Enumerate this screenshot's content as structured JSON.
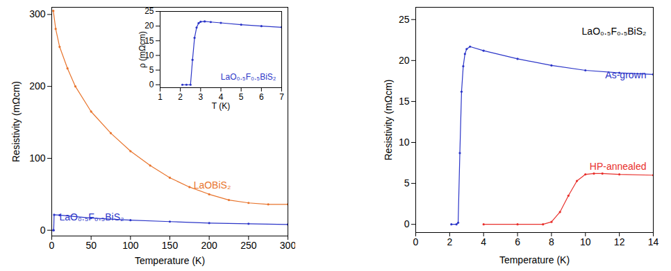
{
  "chart_data": [
    {
      "type": "line",
      "x_label": "Temperature (K)",
      "y_label": "Resistivity (mΩcm)",
      "xlim": [
        0,
        300
      ],
      "ylim": [
        -8,
        310
      ],
      "xticks": [
        0,
        50,
        100,
        150,
        200,
        250,
        300
      ],
      "yticks": [
        0,
        100,
        200,
        300
      ],
      "series": [
        {
          "name": "LaOBiS₂",
          "color": "#e8742c",
          "marker": "circle",
          "line_style": "solid",
          "x": [
            2,
            5,
            10,
            20,
            30,
            50,
            75,
            100,
            125,
            150,
            175,
            200,
            225,
            250,
            275,
            300
          ],
          "values": [
            305,
            280,
            255,
            225,
            200,
            165,
            135,
            110,
            90,
            73,
            60,
            50,
            42,
            38,
            36,
            36
          ]
        },
        {
          "name": "LaO₀.₅F₀.₅BiS₂",
          "color": "#2b35c8",
          "marker": "circle",
          "line_style": "solid",
          "x": [
            2,
            2.5,
            3,
            10,
            50,
            100,
            150,
            200,
            250,
            300
          ],
          "values": [
            0,
            0,
            21.5,
            21,
            17,
            14,
            12,
            10,
            9,
            8
          ]
        }
      ]
    },
    {
      "type": "line",
      "x_label": "T (K)",
      "y_label": "ρ (mΩcm)",
      "xlim": [
        1,
        7
      ],
      "ylim": [
        -1,
        25
      ],
      "xticks": [
        1,
        2,
        3,
        4,
        5,
        6,
        7
      ],
      "yticks": [
        0,
        5,
        10,
        15,
        20,
        25
      ],
      "series": [
        {
          "name": "LaO₀.₅F₀.₅BiS₂",
          "color": "#2b35c8",
          "marker": "circle",
          "line_style": "solid",
          "x": [
            2.1,
            2.3,
            2.5,
            2.6,
            2.7,
            2.8,
            2.9,
            3.0,
            3.2,
            3.5,
            4,
            5,
            6,
            7
          ],
          "values": [
            0,
            0,
            0,
            8.5,
            16,
            19.5,
            21,
            21.5,
            21.6,
            21.4,
            21.1,
            20.5,
            20,
            19.6
          ]
        }
      ]
    },
    {
      "type": "line",
      "x_label": "Temperature (K)",
      "y_label": "Resistivity (mΩcm)",
      "xlim": [
        0,
        14
      ],
      "ylim": [
        -1,
        26.5
      ],
      "xticks": [
        0,
        2,
        4,
        6,
        8,
        10,
        12,
        14
      ],
      "yticks": [
        0,
        5,
        10,
        15,
        20,
        25
      ],
      "annotations": [
        "LaO₀.₅F₀.₅BiS₂"
      ],
      "series": [
        {
          "name": "As-grown",
          "color": "#2b35c8",
          "marker": "circle",
          "line_style": "solid",
          "x": [
            2.1,
            2.4,
            2.5,
            2.6,
            2.7,
            2.8,
            2.9,
            3.0,
            3.2,
            4,
            6,
            8,
            10,
            12,
            14
          ],
          "values": [
            0,
            0,
            0.2,
            8.7,
            16.2,
            19.3,
            20.8,
            21.4,
            21.7,
            21.2,
            20.2,
            19.4,
            18.8,
            18.5,
            18.3
          ]
        },
        {
          "name": "HP-annealed",
          "color": "#e8302c",
          "marker": "circle",
          "line_style": "solid",
          "x": [
            4,
            6,
            7.5,
            8,
            8.5,
            9,
            9.5,
            10,
            10.5,
            11,
            12,
            14
          ],
          "values": [
            0,
            0,
            0,
            0.3,
            1.5,
            3.5,
            5.3,
            6.1,
            6.2,
            6.2,
            6.1,
            6.0
          ]
        }
      ]
    }
  ]
}
